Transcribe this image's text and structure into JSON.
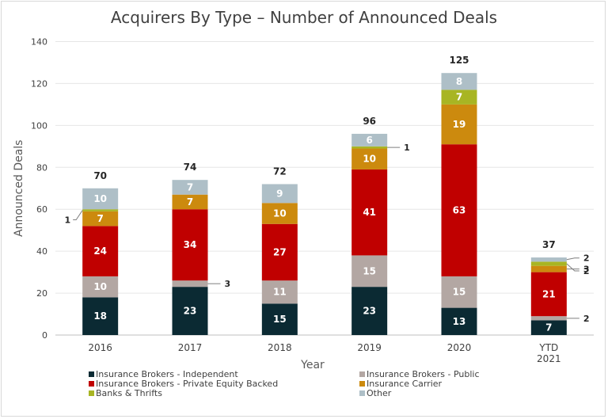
{
  "chart_data": {
    "type": "bar",
    "stacked": true,
    "title": "Acquirers By Type – Number of Announced Deals",
    "xlabel": "Year",
    "ylabel": "Announced Deals",
    "ylim": [
      0,
      140
    ],
    "yticks": [
      "0",
      "20",
      "40",
      "60",
      "80",
      "100",
      "120",
      "140"
    ],
    "grid": true,
    "legend_position": "bottom",
    "categories": [
      "2016",
      "2017",
      "2018",
      "2019",
      "2020",
      "YTD\n2021"
    ],
    "totals": [
      "70",
      "74",
      "72",
      "96",
      "125",
      "37"
    ],
    "series": [
      {
        "name": "Insurance Brokers - Independent",
        "color": "#0b2a33",
        "label_color": "#ffffff",
        "values": [
          18,
          23,
          15,
          23,
          13,
          7
        ]
      },
      {
        "name": "Insurance Brokers - Public",
        "color": "#b3a7a3",
        "label_color": "#ffffff",
        "values": [
          10,
          3,
          11,
          15,
          15,
          2
        ]
      },
      {
        "name": "Insurance Brokers - Private Equity Backed",
        "color": "#c00000",
        "label_color": "#ffffff",
        "values": [
          24,
          34,
          27,
          41,
          63,
          21
        ]
      },
      {
        "name": "Insurance Carrier",
        "color": "#cc8a0e",
        "label_color": "#ffffff",
        "values": [
          7,
          7,
          10,
          10,
          19,
          3
        ]
      },
      {
        "name": "Banks & Thrifts",
        "color": "#a8b523",
        "label_color": "#ffffff",
        "values": [
          1,
          0,
          0,
          1,
          7,
          2
        ]
      },
      {
        "name": "Other",
        "color": "#aebfc7",
        "label_color": "#ffffff",
        "values": [
          10,
          7,
          9,
          6,
          8,
          2
        ]
      }
    ]
  }
}
